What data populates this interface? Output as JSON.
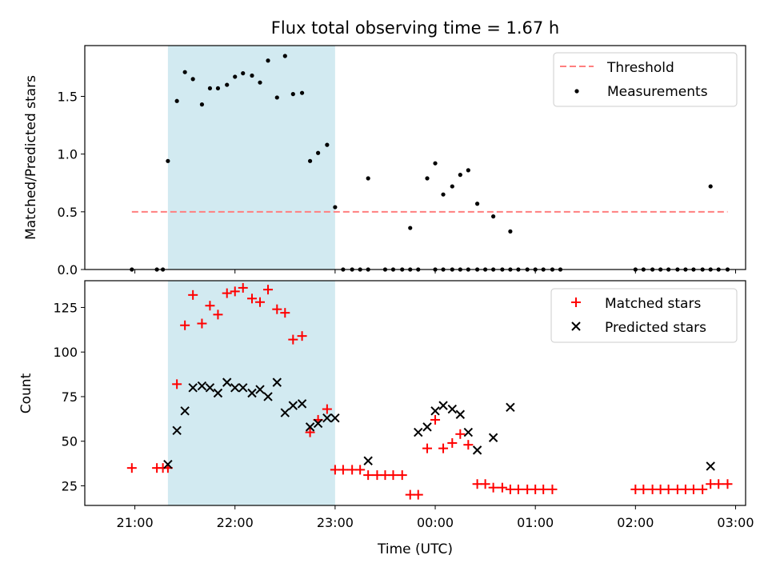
{
  "chart_data": {
    "title": "Flux total observing time = 1.67 h",
    "xlabel": "Time (UTC)",
    "x_ticks": [
      "21:00",
      "22:00",
      "23:00",
      "00:00",
      "01:00",
      "02:00",
      "03:00"
    ],
    "x_range_hours": [
      20.5,
      27.1
    ],
    "shaded_interval": {
      "start_hour": 21.33,
      "end_hour": 23.0,
      "color": "#add8e6"
    },
    "charts": [
      {
        "type": "scatter",
        "ylabel": "Matched/Predicted stars",
        "ylim": [
          0,
          1.94
        ],
        "y_ticks": [
          "0.0",
          "0.5",
          "1.0",
          "1.5"
        ],
        "y_tick_values": [
          0.0,
          0.5,
          1.0,
          1.5
        ],
        "legend": {
          "position": "top-right",
          "entries": [
            "Threshold",
            "Measurements"
          ]
        },
        "threshold": {
          "name": "Threshold",
          "value": 0.5,
          "x_start": 20.97,
          "x_end": 26.92,
          "color": "#ff7f7f"
        },
        "series": [
          {
            "name": "Measurements",
            "color": "#000000",
            "x": [
              20.97,
              21.22,
              21.28,
              21.33,
              21.42,
              21.5,
              21.58,
              21.67,
              21.75,
              21.83,
              21.92,
              22.0,
              22.08,
              22.17,
              22.25,
              22.33,
              22.42,
              22.5,
              22.58,
              22.67,
              22.75,
              22.83,
              22.92,
              23.0,
              23.08,
              23.17,
              23.25,
              23.33,
              23.5,
              23.58,
              23.67,
              23.75,
              23.83,
              24.0,
              24.08,
              24.17,
              24.25,
              24.33,
              24.42,
              24.5,
              24.58,
              24.67,
              24.75,
              24.83,
              24.92,
              25.0,
              25.08,
              25.17,
              25.25,
              26.0,
              26.08,
              26.17,
              26.25,
              26.33,
              26.42,
              26.5,
              26.58,
              26.67,
              26.75,
              26.83,
              26.92
            ],
            "y": [
              0,
              0,
              0,
              0.94,
              1.46,
              1.71,
              1.65,
              1.43,
              1.57,
              1.57,
              1.6,
              1.67,
              1.7,
              1.68,
              1.62,
              1.81,
              1.49,
              1.85,
              1.52,
              1.53,
              0.94,
              1.01,
              1.08,
              0.54,
              0,
              0,
              0,
              0,
              0,
              0,
              0,
              0,
              0,
              0,
              0,
              0,
              0,
              0,
              0,
              0,
              0,
              0,
              0,
              0,
              0,
              0,
              0,
              0,
              0,
              0,
              0,
              0,
              0,
              0,
              0,
              0,
              0,
              0,
              0,
              0,
              0
            ],
            "note_x": [
              23.33,
              23.75,
              23.92,
              24.0,
              24.08,
              24.17,
              24.25,
              24.33,
              24.42,
              24.58,
              24.75,
              26.75
            ],
            "note_y": [
              0.79,
              0.36,
              0.79,
              0.92,
              0.65,
              0.72,
              0.82,
              0.86,
              0.57,
              0.46,
              0.33,
              0.72
            ]
          }
        ]
      },
      {
        "type": "scatter",
        "ylabel": "Count",
        "ylim": [
          14,
          140
        ],
        "y_ticks": [
          "25",
          "50",
          "75",
          "100",
          "125"
        ],
        "y_tick_values": [
          25,
          50,
          75,
          100,
          125
        ],
        "legend": {
          "position": "top-right",
          "entries": [
            "Matched stars",
            "Predicted stars"
          ]
        },
        "series": [
          {
            "name": "Matched stars",
            "marker": "+",
            "color": "#ff0000",
            "x": [
              20.97,
              21.22,
              21.28,
              21.33,
              21.42,
              21.5,
              21.58,
              21.67,
              21.75,
              21.83,
              21.92,
              22.0,
              22.08,
              22.17,
              22.25,
              22.33,
              22.42,
              22.5,
              22.58,
              22.67,
              22.75,
              22.83,
              22.92,
              23.0,
              23.08,
              23.17,
              23.25,
              23.33,
              23.42,
              23.5,
              23.58,
              23.67,
              23.75,
              23.83,
              23.92,
              24.0,
              24.08,
              24.17,
              24.25,
              24.33,
              24.42,
              24.5,
              24.58,
              24.67,
              24.75,
              24.83,
              24.92,
              25.0,
              25.08,
              25.17,
              26.0,
              26.08,
              26.17,
              26.25,
              26.33,
              26.42,
              26.5,
              26.58,
              26.67,
              26.75,
              26.83,
              26.92
            ],
            "y": [
              35,
              35,
              35,
              35,
              82,
              115,
              132,
              116,
              126,
              121,
              133,
              134,
              136,
              130,
              128,
              135,
              124,
              122,
              107,
              109,
              55,
              62,
              68,
              34,
              34,
              34,
              34,
              31,
              31,
              31,
              31,
              31,
              20,
              20,
              46,
              62,
              46,
              49,
              54,
              48,
              26,
              26,
              24,
              24,
              23,
              23,
              23,
              23,
              23,
              23,
              23,
              23,
              23,
              23,
              23,
              23,
              23,
              23,
              23,
              26,
              26,
              26
            ]
          },
          {
            "name": "Predicted stars",
            "marker": "x",
            "color": "#000000",
            "x": [
              21.33,
              21.42,
              21.5,
              21.58,
              21.67,
              21.75,
              21.83,
              21.92,
              22.0,
              22.08,
              22.17,
              22.25,
              22.33,
              22.42,
              22.5,
              22.58,
              22.67,
              22.75,
              22.83,
              22.92,
              23.0,
              23.33,
              23.83,
              23.92,
              24.0,
              24.08,
              24.17,
              24.25,
              24.33,
              24.42,
              24.58,
              24.75,
              26.75
            ],
            "y": [
              37,
              56,
              67,
              80,
              81,
              80,
              77,
              83,
              80,
              80,
              77,
              79,
              75,
              83,
              66,
              70,
              71,
              58,
              60,
              63,
              63,
              39,
              55,
              58,
              67,
              70,
              68,
              65,
              55,
              45,
              52,
              69,
              36
            ]
          }
        ]
      }
    ]
  }
}
